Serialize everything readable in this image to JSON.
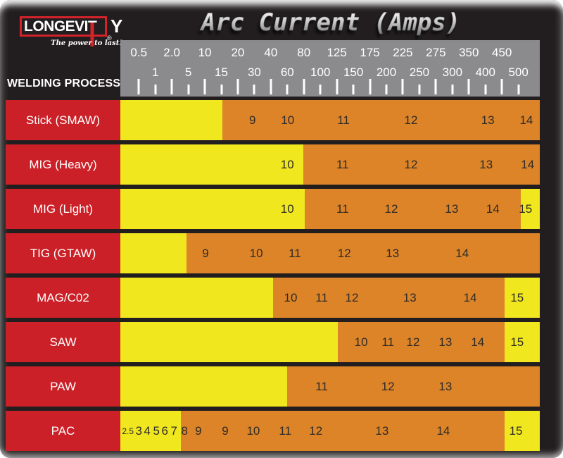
{
  "brand": {
    "box_text": "LONGEVI",
    "t": "T",
    "y": "Y",
    "reg": "®",
    "tagline": "The power to last!"
  },
  "title": "Arc Current (Amps)",
  "axis": {
    "label": "WELDING PROCESS",
    "ticks": [
      {
        "value": "0.5",
        "row": "top",
        "pos": 4.4
      },
      {
        "value": "1",
        "row": "bottom",
        "pos": 8.34
      },
      {
        "value": "2.0",
        "row": "top",
        "pos": 12.27
      },
      {
        "value": "5",
        "row": "bottom",
        "pos": 16.21
      },
      {
        "value": "10",
        "row": "top",
        "pos": 20.14
      },
      {
        "value": "15",
        "row": "bottom",
        "pos": 24.08
      },
      {
        "value": "20",
        "row": "top",
        "pos": 28.01
      },
      {
        "value": "30",
        "row": "bottom",
        "pos": 31.95
      },
      {
        "value": "40",
        "row": "top",
        "pos": 35.88
      },
      {
        "value": "60",
        "row": "bottom",
        "pos": 39.82
      },
      {
        "value": "80",
        "row": "top",
        "pos": 43.75
      },
      {
        "value": "100",
        "row": "bottom",
        "pos": 47.69
      },
      {
        "value": "125",
        "row": "top",
        "pos": 51.62
      },
      {
        "value": "150",
        "row": "bottom",
        "pos": 55.56
      },
      {
        "value": "175",
        "row": "top",
        "pos": 59.49
      },
      {
        "value": "200",
        "row": "bottom",
        "pos": 63.43
      },
      {
        "value": "225",
        "row": "top",
        "pos": 67.36
      },
      {
        "value": "250",
        "row": "bottom",
        "pos": 71.3
      },
      {
        "value": "275",
        "row": "top",
        "pos": 75.23
      },
      {
        "value": "300",
        "row": "bottom",
        "pos": 79.17
      },
      {
        "value": "350",
        "row": "top",
        "pos": 83.1
      },
      {
        "value": "400",
        "row": "bottom",
        "pos": 87.04
      },
      {
        "value": "450",
        "row": "top",
        "pos": 90.97
      },
      {
        "value": "500",
        "row": "bottom",
        "pos": 94.91
      }
    ]
  },
  "colors": {
    "yellow": "#f0e71f",
    "orange": "#dd8428",
    "red": "#cb2027",
    "scale_gray": "#8b8b8e",
    "background": "#221e1f",
    "number_text": "#2e2b27",
    "logo_red": "#d2232a"
  },
  "rows": [
    {
      "label": "Stick (SMAW)",
      "segments": [
        {
          "color": "yellow",
          "from": 0,
          "to": 24.3
        },
        {
          "color": "orange",
          "from": 24.3,
          "to": 100
        }
      ],
      "numbers": [
        {
          "text": "9",
          "pos": 31.5
        },
        {
          "text": "10",
          "pos": 39.9
        },
        {
          "text": "11",
          "pos": 53.2
        },
        {
          "text": "12",
          "pos": 69.3
        },
        {
          "text": "13",
          "pos": 87.6
        },
        {
          "text": "14",
          "pos": 96.8
        }
      ]
    },
    {
      "label": "MIG (Heavy)",
      "segments": [
        {
          "color": "yellow",
          "from": 0,
          "to": 43.6
        },
        {
          "color": "orange",
          "from": 43.6,
          "to": 100
        }
      ],
      "numbers": [
        {
          "text": "10",
          "pos": 39.8
        },
        {
          "text": "11",
          "pos": 53.0
        },
        {
          "text": "12",
          "pos": 69.3
        },
        {
          "text": "13",
          "pos": 87.2
        },
        {
          "text": "14",
          "pos": 97.1
        }
      ]
    },
    {
      "label": "MIG (Light)",
      "segments": [
        {
          "color": "yellow",
          "from": 0,
          "to": 44.0
        },
        {
          "color": "orange",
          "from": 44.0,
          "to": 95.5
        },
        {
          "color": "yellow",
          "from": 95.5,
          "to": 100
        }
      ],
      "numbers": [
        {
          "text": "10",
          "pos": 39.8
        },
        {
          "text": "11",
          "pos": 53.0
        },
        {
          "text": "12",
          "pos": 64.6
        },
        {
          "text": "13",
          "pos": 79.0
        },
        {
          "text": "14",
          "pos": 88.8
        },
        {
          "text": "15",
          "pos": 96.6
        }
      ]
    },
    {
      "label": "TIG (GTAW)",
      "segments": [
        {
          "color": "yellow",
          "from": 0,
          "to": 15.8
        },
        {
          "color": "orange",
          "from": 15.8,
          "to": 100
        }
      ],
      "numbers": [
        {
          "text": "9",
          "pos": 20.3
        },
        {
          "text": "10",
          "pos": 32.4
        },
        {
          "text": "11",
          "pos": 41.6
        },
        {
          "text": "12",
          "pos": 53.4
        },
        {
          "text": "13",
          "pos": 64.9
        },
        {
          "text": "14",
          "pos": 81.5
        }
      ]
    },
    {
      "label": "MAG/C02",
      "segments": [
        {
          "color": "yellow",
          "from": 0,
          "to": 36.4
        },
        {
          "color": "orange",
          "from": 36.4,
          "to": 91.6
        },
        {
          "color": "yellow",
          "from": 91.6,
          "to": 100
        }
      ],
      "numbers": [
        {
          "text": "10",
          "pos": 40.6
        },
        {
          "text": "11",
          "pos": 48.0
        },
        {
          "text": "12",
          "pos": 55.2
        },
        {
          "text": "13",
          "pos": 69.0
        },
        {
          "text": "14",
          "pos": 83.4
        },
        {
          "text": "15",
          "pos": 94.6
        }
      ]
    },
    {
      "label": "SAW",
      "segments": [
        {
          "color": "yellow",
          "from": 0,
          "to": 51.8
        },
        {
          "color": "orange",
          "from": 51.8,
          "to": 91.6
        },
        {
          "color": "yellow",
          "from": 91.6,
          "to": 100
        }
      ],
      "numbers": [
        {
          "text": "10",
          "pos": 57.4
        },
        {
          "text": "11",
          "pos": 63.8
        },
        {
          "text": "12",
          "pos": 69.8
        },
        {
          "text": "13",
          "pos": 77.5
        },
        {
          "text": "14",
          "pos": 85.2
        },
        {
          "text": "15",
          "pos": 94.6
        }
      ]
    },
    {
      "label": "PAW",
      "segments": [
        {
          "color": "yellow",
          "from": 0,
          "to": 39.8
        },
        {
          "color": "orange",
          "from": 39.8,
          "to": 100
        }
      ],
      "numbers": [
        {
          "text": "11",
          "pos": 48.0
        },
        {
          "text": "12",
          "pos": 63.8
        },
        {
          "text": "13",
          "pos": 77.5
        }
      ]
    },
    {
      "label": "PAC",
      "segments": [
        {
          "color": "yellow",
          "from": 0,
          "to": 14.4
        },
        {
          "color": "orange",
          "from": 14.4,
          "to": 91.6
        },
        {
          "color": "yellow",
          "from": 91.6,
          "to": 100
        }
      ],
      "numbers": [
        {
          "text": "2.5",
          "pos": 1.8,
          "small": true
        },
        {
          "text": "3",
          "pos": 4.4
        },
        {
          "text": "4",
          "pos": 6.4
        },
        {
          "text": "5",
          "pos": 8.6
        },
        {
          "text": "6",
          "pos": 10.6
        },
        {
          "text": "7",
          "pos": 12.8
        },
        {
          "text": "8",
          "pos": 15.3
        },
        {
          "text": "9",
          "pos": 18.6
        },
        {
          "text": "9",
          "pos": 25.0
        },
        {
          "text": "10",
          "pos": 31.7
        },
        {
          "text": "11",
          "pos": 39.3
        },
        {
          "text": "12",
          "pos": 46.6
        },
        {
          "text": "13",
          "pos": 62.4
        },
        {
          "text": "14",
          "pos": 77.0
        },
        {
          "text": "15",
          "pos": 94.3
        }
      ]
    }
  ],
  "chart_data": {
    "type": "heatmap",
    "title": "Arc Current (Amps)",
    "x_axis": {
      "label": "Arc Current (Amps)",
      "ticks": [
        0.5,
        1,
        2.0,
        5,
        10,
        15,
        20,
        30,
        40,
        60,
        80,
        100,
        125,
        150,
        175,
        200,
        225,
        250,
        275,
        300,
        350,
        400,
        450,
        500
      ],
      "scale": "quasi-logarithmic, ticks evenly spaced"
    },
    "y_axis": {
      "label": "WELDING PROCESS",
      "categories": [
        "Stick (SMAW)",
        "MIG (Heavy)",
        "MIG (Light)",
        "TIG (GTAW)",
        "MAG/C02",
        "SAW",
        "PAW",
        "PAC"
      ]
    },
    "bar_colors": [
      "yellow",
      "orange"
    ],
    "series": [
      {
        "process": "Stick (SMAW)",
        "shade_numbers": [
          9,
          10,
          11,
          12,
          13,
          14
        ],
        "shade_amps_approx": [
          30,
          60,
          130,
          240,
          400,
          520
        ],
        "orange_range_amps": [
          15,
          500
        ]
      },
      {
        "process": "MIG (Heavy)",
        "shade_numbers": [
          10,
          11,
          12,
          13,
          14
        ],
        "shade_amps_approx": [
          60,
          130,
          240,
          400,
          520
        ],
        "orange_range_amps": [
          80,
          500
        ]
      },
      {
        "process": "MIG (Light)",
        "shade_numbers": [
          10,
          11,
          12,
          13,
          14,
          15
        ],
        "shade_amps_approx": [
          60,
          130,
          205,
          300,
          420,
          505
        ],
        "orange_range_amps": [
          80,
          490
        ]
      },
      {
        "process": "TIG (GTAW)",
        "shade_numbers": [
          9,
          10,
          11,
          12,
          13,
          14
        ],
        "shade_amps_approx": [
          10,
          30,
          65,
          130,
          205,
          320
        ],
        "orange_range_amps": [
          5,
          500
        ]
      },
      {
        "process": "MAG/C02",
        "shade_numbers": [
          10,
          11,
          12,
          13,
          14,
          15
        ],
        "shade_amps_approx": [
          62,
          100,
          140,
          235,
          355,
          495
        ],
        "orange_range_amps": [
          42,
          460
        ]
      },
      {
        "process": "SAW",
        "shade_numbers": [
          10,
          11,
          12,
          13,
          14,
          15
        ],
        "shade_amps_approx": [
          160,
          200,
          240,
          290,
          375,
          495
        ],
        "orange_range_amps": [
          125,
          460
        ]
      },
      {
        "process": "PAW",
        "shade_numbers": [
          11,
          12,
          13
        ],
        "shade_amps_approx": [
          100,
          200,
          290
        ],
        "orange_range_amps": [
          60,
          500
        ]
      },
      {
        "process": "PAC",
        "shade_numbers": [
          2.5,
          3,
          4,
          5,
          6,
          7,
          8,
          9,
          9,
          10,
          11,
          12,
          13,
          14,
          15
        ],
        "shade_amps_approx": [
          0.4,
          0.5,
          0.8,
          1,
          1.5,
          2,
          4,
          7,
          16,
          28,
          58,
          90,
          190,
          285,
          490
        ],
        "orange_range_amps": [
          3.5,
          460
        ]
      }
    ]
  }
}
